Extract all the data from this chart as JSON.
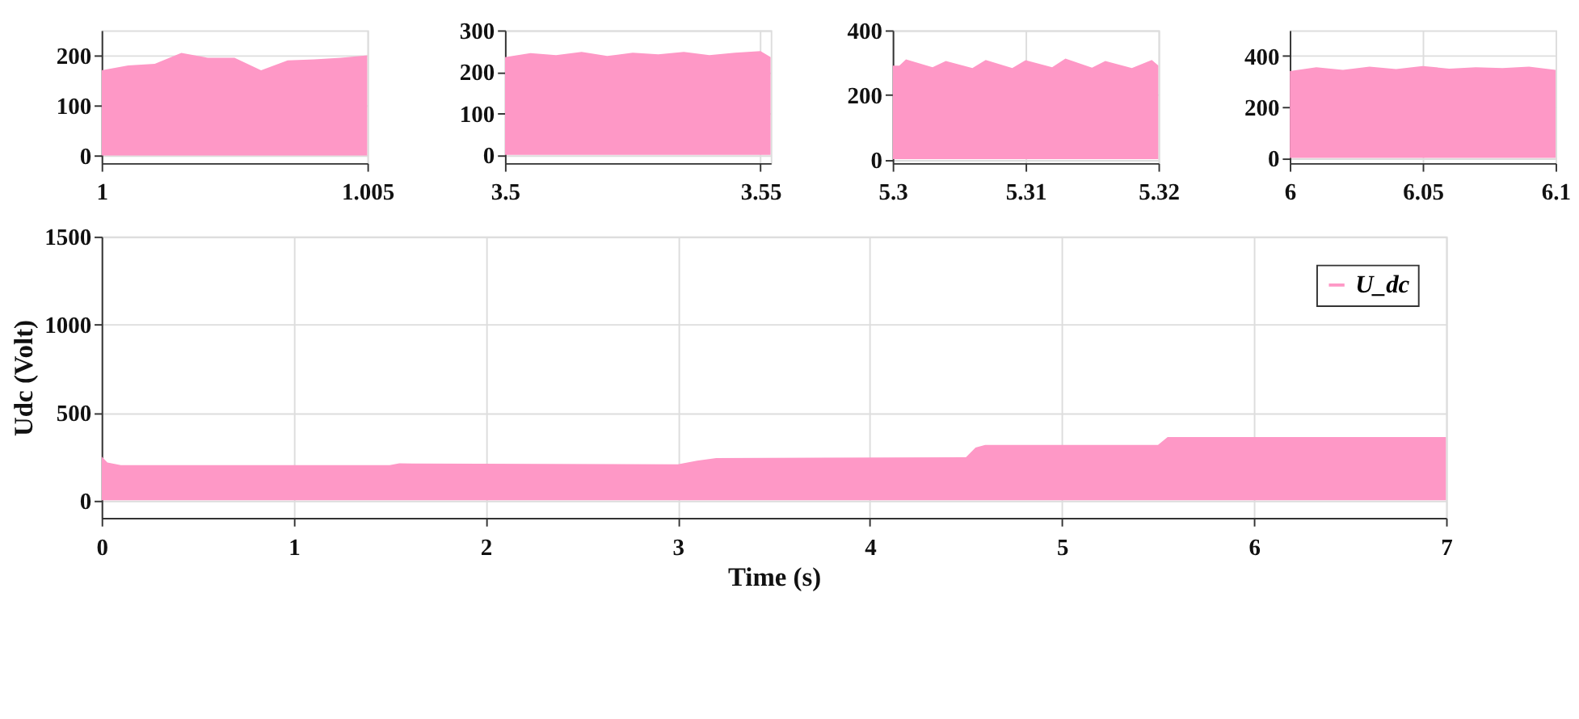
{
  "chart_data": [
    {
      "type": "area",
      "x": [
        1,
        1.0005,
        1.001,
        1.0015,
        1.002,
        1.0025,
        1.003,
        1.0035,
        1.004,
        1.0045,
        1.005
      ],
      "series": [
        {
          "color": "#fe98c6",
          "values": [
            170,
            180,
            183,
            205,
            195,
            195,
            170,
            190,
            192,
            195,
            200
          ]
        }
      ],
      "xlim": [
        1,
        1.005
      ],
      "xticks": [
        1,
        1.005
      ],
      "ylim": [
        -15,
        250
      ],
      "yticks": [
        0,
        100,
        200
      ],
      "grid": true
    },
    {
      "type": "area",
      "x": [
        3.5,
        3.505,
        3.51,
        3.515,
        3.52,
        3.525,
        3.53,
        3.535,
        3.54,
        3.545,
        3.55,
        3.552
      ],
      "series": [
        {
          "color": "#fe98c6",
          "values": [
            235,
            245,
            240,
            248,
            238,
            246,
            242,
            248,
            240,
            246,
            250,
            235
          ]
        }
      ],
      "xlim": [
        3.5,
        3.552
      ],
      "xticks": [
        3.5,
        3.55
      ],
      "ylim": [
        -20,
        300
      ],
      "yticks": [
        0,
        100,
        200,
        300
      ],
      "grid": true
    },
    {
      "type": "area",
      "x": [
        5.3,
        5.3005,
        5.301,
        5.303,
        5.304,
        5.306,
        5.307,
        5.309,
        5.31,
        5.312,
        5.313,
        5.315,
        5.316,
        5.318,
        5.3195,
        5.32
      ],
      "series": [
        {
          "color": "#fe98c6",
          "values": [
            290,
            290,
            310,
            285,
            305,
            283,
            308,
            283,
            307,
            285,
            312,
            284,
            305,
            283,
            308,
            290
          ]
        }
      ],
      "xlim": [
        5.3,
        5.32
      ],
      "xticks": [
        5.3,
        5.31,
        5.32
      ],
      "ylim": [
        -12,
        400
      ],
      "yticks": [
        0,
        200,
        400
      ],
      "grid": true
    },
    {
      "type": "area",
      "x": [
        6,
        6.01,
        6.02,
        6.03,
        6.04,
        6.05,
        6.06,
        6.07,
        6.08,
        6.09,
        6.1
      ],
      "series": [
        {
          "color": "#fe98c6",
          "values": [
            340,
            355,
            345,
            358,
            348,
            360,
            350,
            355,
            352,
            358,
            345
          ]
        }
      ],
      "xlim": [
        6,
        6.1
      ],
      "xticks": [
        6,
        6.05,
        6.1
      ],
      "ylim": [
        -20,
        500
      ],
      "yticks": [
        0,
        200,
        400
      ],
      "grid": true
    },
    {
      "type": "area",
      "xlabel": "Time (s)",
      "ylabel": "Udc (Volt)",
      "x": [
        0,
        0.03,
        0.1,
        1.5,
        1.55,
        3.0,
        3.1,
        3.2,
        4.5,
        4.55,
        4.6,
        5.5,
        5.55,
        7
      ],
      "series": [
        {
          "name": "U_dc",
          "color": "#fe98c6",
          "values": [
            250,
            215,
            200,
            200,
            210,
            205,
            225,
            240,
            245,
            300,
            315,
            315,
            360,
            360
          ]
        }
      ],
      "xlim": [
        0,
        7
      ],
      "xticks": [
        0,
        1,
        2,
        3,
        4,
        5,
        6,
        7
      ],
      "ylim": [
        -100,
        1500
      ],
      "yticks": [
        0,
        500,
        1000,
        1500
      ],
      "grid": true,
      "legend": "top right"
    }
  ]
}
